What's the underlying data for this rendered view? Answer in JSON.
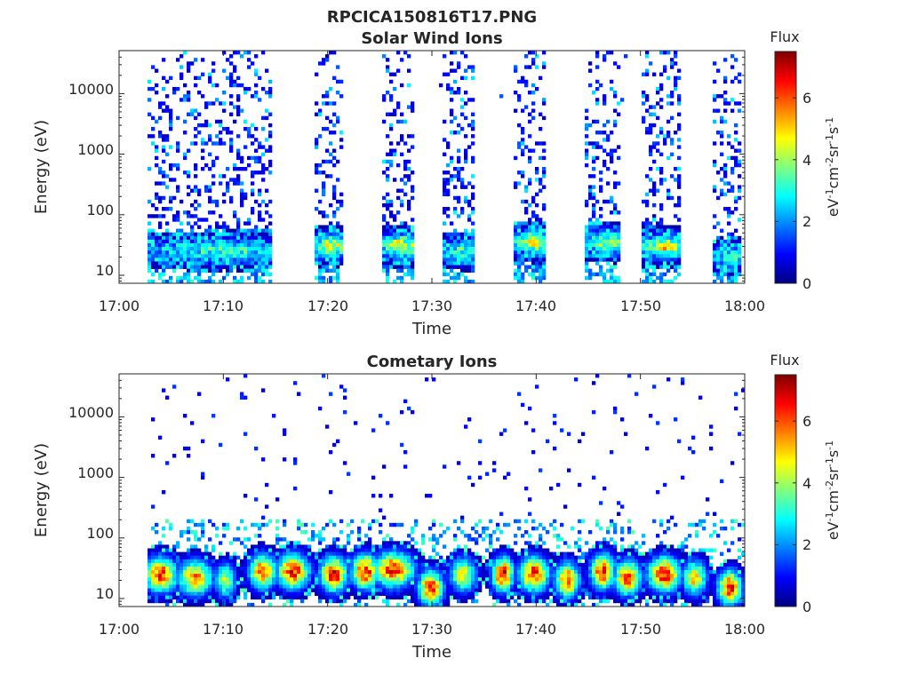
{
  "figure": {
    "title": "RPCICA150816T17.PNG"
  },
  "colormap": {
    "name": "jet",
    "stops": [
      "#00007f",
      "#0000ff",
      "#007fff",
      "#00ffff",
      "#7fff7f",
      "#ffff00",
      "#ff7f00",
      "#ff0000",
      "#7f0000"
    ]
  },
  "chart_data": [
    {
      "type": "heatmap",
      "title": "Solar Wind Ions",
      "xlabel": "Time",
      "ylabel": "Energy (eV)",
      "x_ticks": [
        "17:00",
        "17:10",
        "17:20",
        "17:30",
        "17:40",
        "17:50",
        "18:00"
      ],
      "x_range_min": [
        0,
        60
      ],
      "y_scale": "log",
      "y_ticks": [
        "10",
        "100",
        "1000",
        "10000"
      ],
      "y_range_eV": [
        6,
        40000
      ],
      "colorbar": {
        "label": "Flux",
        "unit_label_parts": [
          "eV",
          "-1",
          "cm",
          "-2",
          "sr",
          "-1",
          "s",
          "-1"
        ],
        "ticks": [
          "0",
          "2",
          "4",
          "6"
        ],
        "range": [
          0,
          7.5
        ]
      },
      "bursts": [
        {
          "start_min": 2.8,
          "end_min": 14.8,
          "low_peak_eV": 25,
          "peak_flux": 3.5
        },
        {
          "start_min": 18.6,
          "end_min": 21.6,
          "low_peak_eV": 30,
          "peak_flux": 5.0
        },
        {
          "start_min": 25.2,
          "end_min": 28.4,
          "low_peak_eV": 30,
          "peak_flux": 5.2
        },
        {
          "start_min": 31.0,
          "end_min": 34.2,
          "low_peak_eV": 25,
          "peak_flux": 3.5
        },
        {
          "start_min": 38.0,
          "end_min": 41.0,
          "low_peak_eV": 35,
          "peak_flux": 5.0
        },
        {
          "start_min": 44.8,
          "end_min": 48.2,
          "low_peak_eV": 35,
          "peak_flux": 4.8
        },
        {
          "start_min": 50.2,
          "end_min": 54.0,
          "low_peak_eV": 30,
          "peak_flux": 5.2
        },
        {
          "start_min": 56.8,
          "end_min": 59.8,
          "low_peak_eV": 20,
          "peak_flux": 3.5
        }
      ]
    },
    {
      "type": "heatmap",
      "title": "Cometary Ions",
      "xlabel": "Time",
      "ylabel": "Energy (eV)",
      "x_ticks": [
        "17:00",
        "17:10",
        "17:20",
        "17:30",
        "17:40",
        "17:50",
        "18:00"
      ],
      "x_range_min": [
        0,
        60
      ],
      "y_scale": "log",
      "y_ticks": [
        "10",
        "100",
        "1000",
        "10000"
      ],
      "y_range_eV": [
        6,
        40000
      ],
      "colorbar": {
        "label": "Flux",
        "unit_label_parts": [
          "eV",
          "-1",
          "cm",
          "-2",
          "sr",
          "-1",
          "s",
          "-1"
        ],
        "ticks": [
          "0",
          "2",
          "4",
          "6"
        ],
        "range": [
          0,
          7.5
        ]
      },
      "blobs": [
        {
          "center_min": 4.0,
          "halfwidth_min": 1.2,
          "center_eV": 25,
          "peak_flux": 6.8
        },
        {
          "center_min": 7.3,
          "halfwidth_min": 1.3,
          "center_eV": 22,
          "peak_flux": 6.0
        },
        {
          "center_min": 10.2,
          "halfwidth_min": 0.8,
          "center_eV": 20,
          "peak_flux": 4.5
        },
        {
          "center_min": 13.8,
          "halfwidth_min": 1.0,
          "center_eV": 28,
          "peak_flux": 6.5
        },
        {
          "center_min": 16.7,
          "halfwidth_min": 1.2,
          "center_eV": 28,
          "peak_flux": 6.8
        },
        {
          "center_min": 20.6,
          "halfwidth_min": 1.0,
          "center_eV": 25,
          "peak_flux": 7.0
        },
        {
          "center_min": 23.6,
          "halfwidth_min": 1.0,
          "center_eV": 28,
          "peak_flux": 7.0
        },
        {
          "center_min": 26.3,
          "halfwidth_min": 1.5,
          "center_eV": 30,
          "peak_flux": 6.8
        },
        {
          "center_min": 29.9,
          "halfwidth_min": 0.9,
          "center_eV": 15,
          "peak_flux": 7.0
        },
        {
          "center_min": 33.0,
          "halfwidth_min": 1.0,
          "center_eV": 25,
          "peak_flux": 5.0
        },
        {
          "center_min": 36.8,
          "halfwidth_min": 0.8,
          "center_eV": 25,
          "peak_flux": 7.0
        },
        {
          "center_min": 39.8,
          "halfwidth_min": 1.1,
          "center_eV": 25,
          "peak_flux": 6.8
        },
        {
          "center_min": 43.0,
          "halfwidth_min": 0.9,
          "center_eV": 20,
          "peak_flux": 6.5
        },
        {
          "center_min": 46.4,
          "halfwidth_min": 0.9,
          "center_eV": 28,
          "peak_flux": 7.0
        },
        {
          "center_min": 48.8,
          "halfwidth_min": 1.0,
          "center_eV": 22,
          "peak_flux": 6.5
        },
        {
          "center_min": 52.3,
          "halfwidth_min": 1.2,
          "center_eV": 25,
          "peak_flux": 7.0
        },
        {
          "center_min": 55.2,
          "halfwidth_min": 0.9,
          "center_eV": 22,
          "peak_flux": 5.5
        },
        {
          "center_min": 58.6,
          "halfwidth_min": 0.9,
          "center_eV": 15,
          "peak_flux": 6.8
        }
      ]
    }
  ]
}
